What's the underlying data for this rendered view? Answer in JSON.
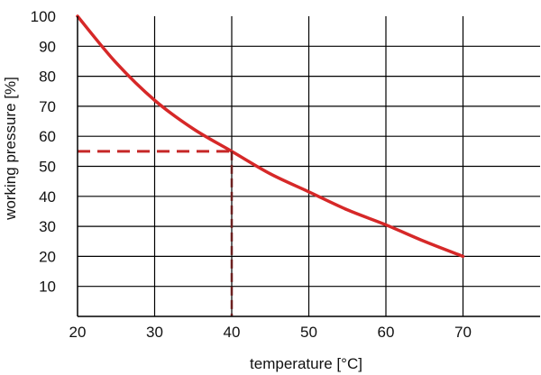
{
  "chart_data": {
    "type": "line",
    "title": "",
    "xlabel": "temperature [°C]",
    "ylabel": "working pressure [%]",
    "xlim": [
      20,
      80
    ],
    "ylim": [
      0,
      100
    ],
    "x_ticks": [
      20,
      30,
      40,
      50,
      60,
      70
    ],
    "y_ticks": [
      10,
      20,
      30,
      40,
      50,
      60,
      70,
      80,
      90,
      100
    ],
    "grid": true,
    "series": [
      {
        "color": "#d62828",
        "x": [
          20,
          25,
          30,
          35,
          40,
          45,
          50,
          55,
          60,
          65,
          70
        ],
        "y": [
          100,
          84.5,
          72,
          62.5,
          55,
          47.5,
          41.5,
          35.5,
          30.5,
          25,
          20
        ]
      }
    ],
    "reference_point": {
      "x": 40,
      "y": 55,
      "color": "#c62828",
      "style": "dashed"
    }
  }
}
